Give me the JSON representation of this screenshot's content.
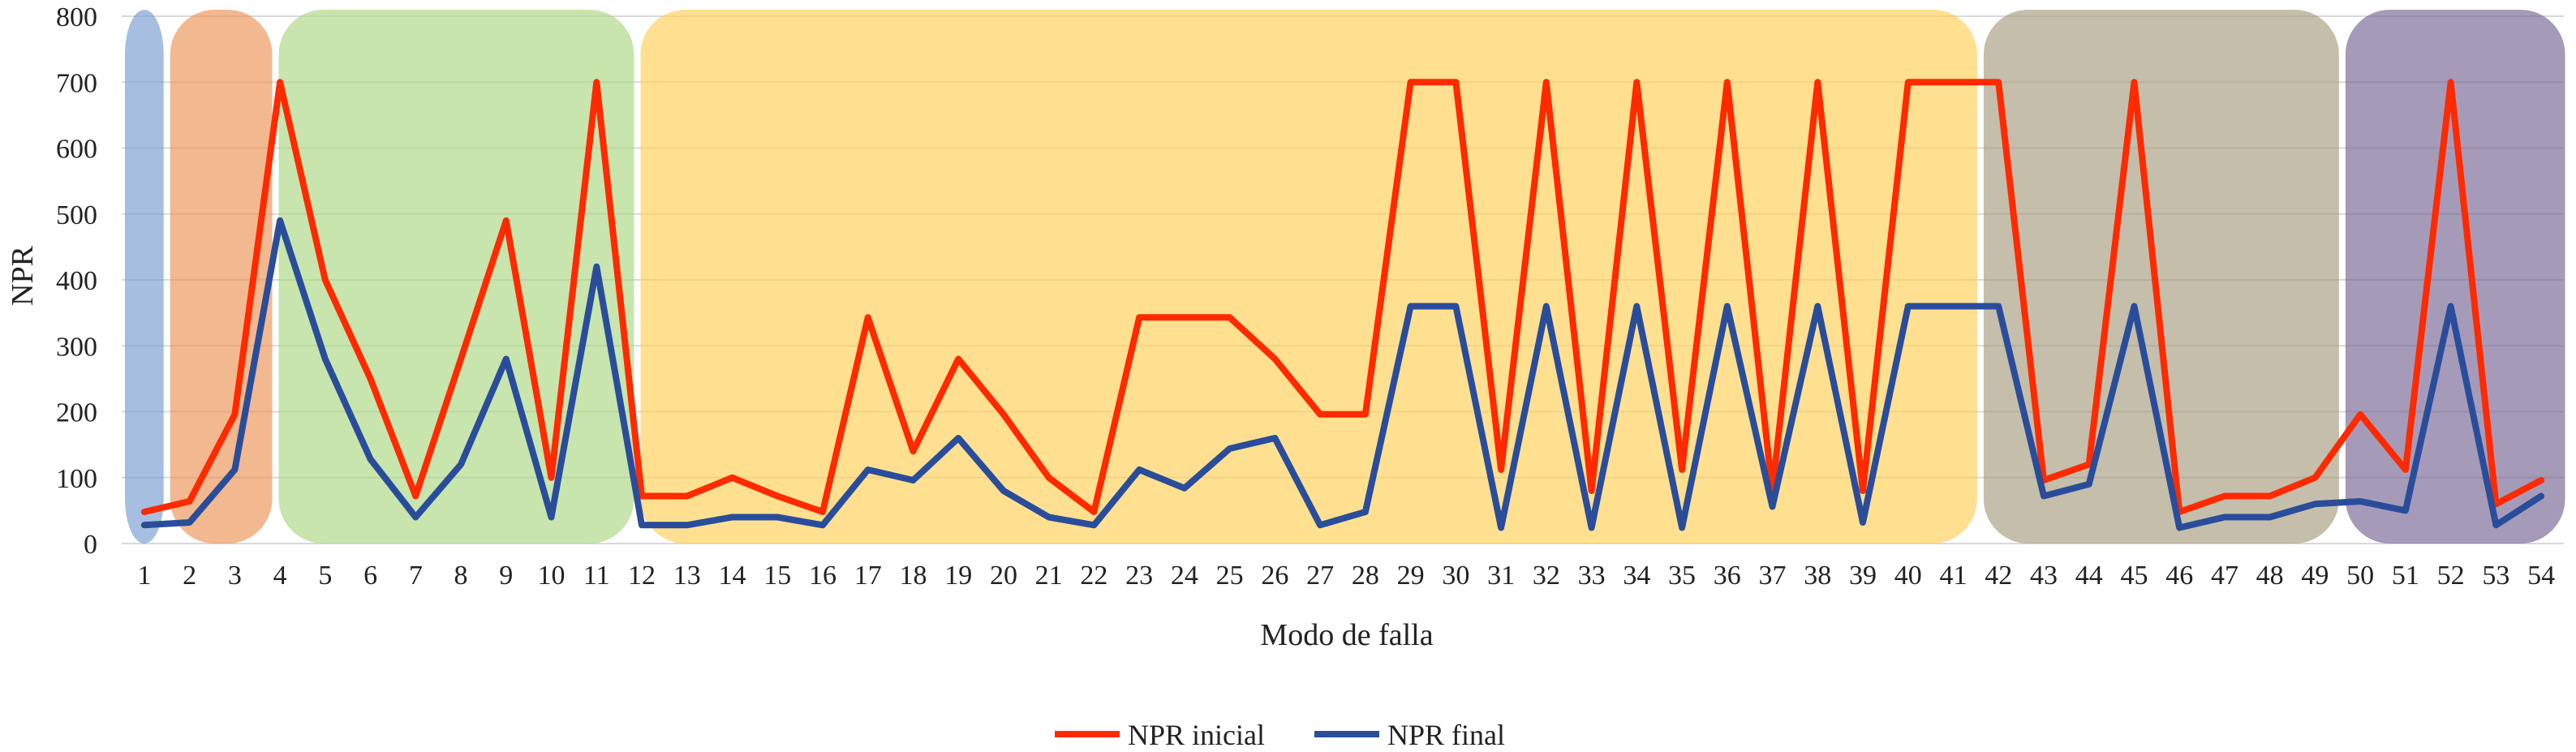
{
  "chart_data": {
    "type": "line",
    "title": "",
    "xlabel": "Modo de falla",
    "ylabel": "NPR",
    "ylim": [
      0,
      800
    ],
    "yticks": [
      0,
      100,
      200,
      300,
      400,
      500,
      600,
      700,
      800
    ],
    "grid": true,
    "legend_position": "bottom-center",
    "x": [
      1,
      2,
      3,
      4,
      5,
      6,
      7,
      8,
      9,
      10,
      11,
      12,
      13,
      14,
      15,
      16,
      17,
      18,
      19,
      20,
      21,
      22,
      23,
      24,
      25,
      26,
      27,
      28,
      29,
      30,
      31,
      32,
      33,
      34,
      35,
      36,
      37,
      38,
      39,
      40,
      41,
      42,
      43,
      44,
      45,
      46,
      47,
      48,
      49,
      50,
      51,
      52,
      53,
      54
    ],
    "series": [
      {
        "name": "NPR inicial",
        "color": "#ff2a00",
        "values": [
          48,
          64,
          196,
          700,
          400,
          250,
          72,
          280,
          490,
          100,
          700,
          72,
          72,
          100,
          72,
          48,
          343,
          140,
          280,
          196,
          100,
          48,
          343,
          343,
          343,
          280,
          196,
          196,
          700,
          700,
          112,
          700,
          80,
          700,
          112,
          700,
          80,
          700,
          80,
          700,
          700,
          700,
          96,
          120,
          700,
          48,
          72,
          72,
          100,
          196,
          112,
          700,
          60,
          96
        ]
      },
      {
        "name": "NPR final",
        "color": "#2a4d9b",
        "values": [
          28,
          32,
          112,
          490,
          280,
          128,
          40,
          120,
          280,
          40,
          420,
          28,
          28,
          40,
          40,
          28,
          112,
          96,
          160,
          80,
          40,
          28,
          112,
          84,
          144,
          160,
          28,
          48,
          360,
          360,
          24,
          360,
          24,
          360,
          24,
          360,
          56,
          360,
          32,
          360,
          360,
          360,
          72,
          90,
          360,
          24,
          40,
          40,
          60,
          64,
          50,
          360,
          28,
          72
        ]
      }
    ],
    "regions": [
      {
        "from": 0.5,
        "to": 1.5,
        "color": "#6f97cf"
      },
      {
        "from": 1.5,
        "to": 3.9,
        "color": "#ea8c4a"
      },
      {
        "from": 3.9,
        "to": 11.9,
        "color": "#a4d57a"
      },
      {
        "from": 11.9,
        "to": 41.6,
        "color": "#ffcd4d"
      },
      {
        "from": 41.6,
        "to": 49.6,
        "color": "#9f9677"
      },
      {
        "from": 49.6,
        "to": 54.6,
        "color": "#6e5d8e"
      }
    ]
  }
}
